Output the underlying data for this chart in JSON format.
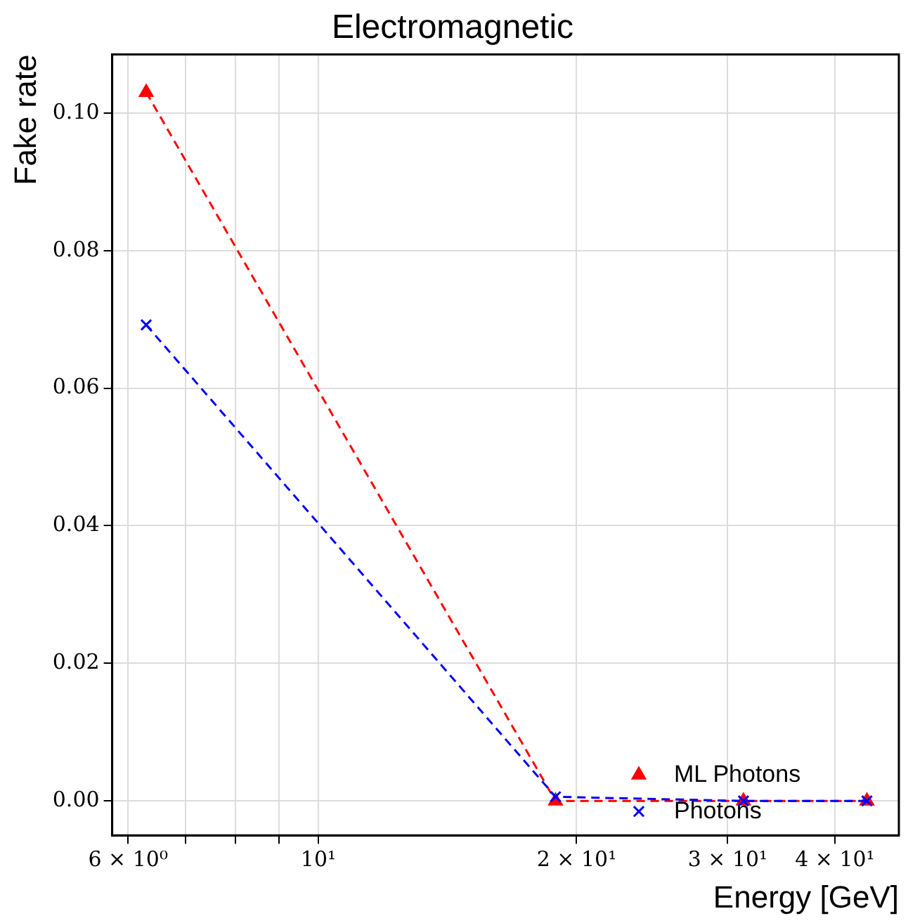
{
  "chart_data": {
    "type": "line",
    "title": "Electromagnetic",
    "xlabel": "Energy [GeV]",
    "ylabel": "Fake rate",
    "log": "x",
    "grid": true,
    "legend": "bottom right",
    "line_style": "dashed",
    "xlim": [
      5.75,
      47.5
    ],
    "xticks": [
      {
        "value": 6,
        "label": "6 × 10⁰"
      },
      {
        "value": 7,
        "label": null
      },
      {
        "value": 8,
        "label": null
      },
      {
        "value": 9,
        "label": null
      },
      {
        "value": 10,
        "label": "10¹"
      },
      {
        "value": 20,
        "label": "2 × 10¹"
      },
      {
        "value": 30,
        "label": "3 × 10¹"
      },
      {
        "value": 40,
        "label": "4 × 10¹"
      }
    ],
    "ylim": [
      -0.005,
      0.1085
    ],
    "yticks": [
      {
        "value": 0,
        "label": "0.00"
      },
      {
        "value": 0.02,
        "label": "0.02"
      },
      {
        "value": 0.04,
        "label": "0.04"
      },
      {
        "value": 0.06,
        "label": "0.06"
      },
      {
        "value": 0.08,
        "label": "0.08"
      },
      {
        "value": 0.1,
        "label": "0.10"
      }
    ],
    "x": [
      6.3,
      18.9,
      31.3,
      43.6
    ],
    "series": [
      {
        "name": "ML Photons",
        "color": "#ff0000",
        "marker": "triangle",
        "values": [
          0.103,
          0,
          0,
          0
        ]
      },
      {
        "name": "Photons",
        "color": "#0000ff",
        "marker": "cross",
        "values": [
          0.0692,
          0.0006,
          0,
          0
        ]
      }
    ]
  }
}
